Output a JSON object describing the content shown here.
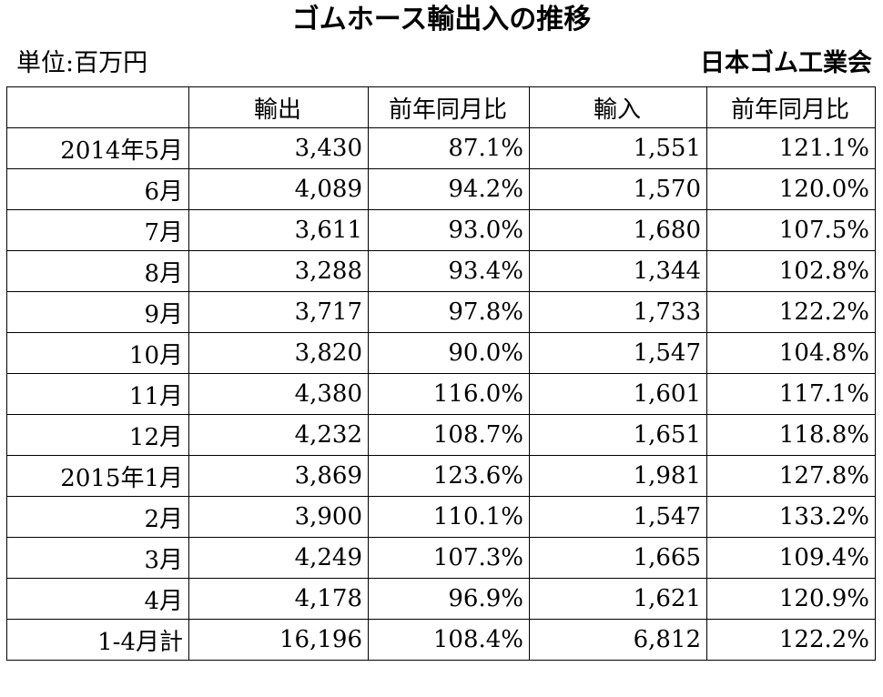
{
  "title": "ゴムホース輸出入の推移",
  "unit_label": "単位:百万円",
  "source_label": "日本ゴム工業会",
  "table": {
    "headers": [
      "",
      "輸出",
      "前年同月比",
      "輸入",
      "前年同月比"
    ],
    "rows": [
      [
        "2014年5月",
        "3,430",
        "87.1%",
        "1,551",
        "121.1%"
      ],
      [
        "6月",
        "4,089",
        "94.2%",
        "1,570",
        "120.0%"
      ],
      [
        "7月",
        "3,611",
        "93.0%",
        "1,680",
        "107.5%"
      ],
      [
        "8月",
        "3,288",
        "93.4%",
        "1,344",
        "102.8%"
      ],
      [
        "9月",
        "3,717",
        "97.8%",
        "1,733",
        "122.2%"
      ],
      [
        "10月",
        "3,820",
        "90.0%",
        "1,547",
        "104.8%"
      ],
      [
        "11月",
        "4,380",
        "116.0%",
        "1,601",
        "117.1%"
      ],
      [
        "12月",
        "4,232",
        "108.7%",
        "1,651",
        "118.8%"
      ],
      [
        "2015年1月",
        "3,869",
        "123.6%",
        "1,981",
        "127.8%"
      ],
      [
        "2月",
        "3,900",
        "110.1%",
        "1,547",
        "133.2%"
      ],
      [
        "3月",
        "4,249",
        "107.3%",
        "1,665",
        "109.4%"
      ],
      [
        "4月",
        "4,178",
        "96.9%",
        "1,621",
        "120.9%"
      ],
      [
        "1-4月計",
        "16,196",
        "108.4%",
        "6,812",
        "122.2%"
      ]
    ]
  }
}
